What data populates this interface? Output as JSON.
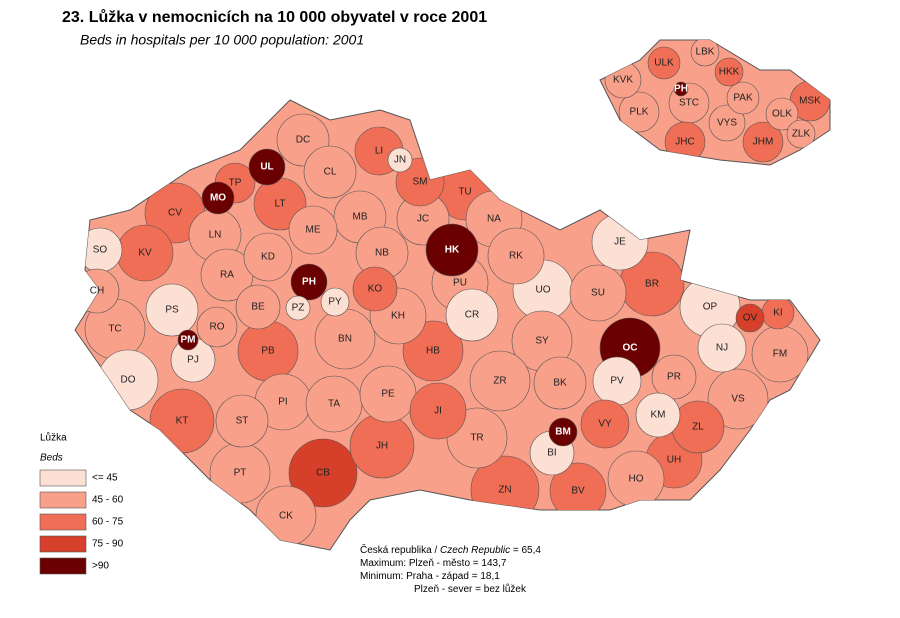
{
  "header": {
    "title": "23. Lůžka v nemocnicích na 10 000 obyvatel v roce 2001",
    "subtitle": "Beds in hospitals per 10 000 population: 2001"
  },
  "legend": {
    "title": "Lůžka",
    "subtitle": "Beds",
    "items": [
      {
        "label": "<= 45",
        "color": "#fde0d4"
      },
      {
        "label": "45 - 60",
        "color": "#f9a08a"
      },
      {
        "label": "60 - 75",
        "color": "#f06e55"
      },
      {
        "label": "75 - 90",
        "color": "#d6402a"
      },
      {
        "label": ">90",
        "color": "#6b0000"
      }
    ]
  },
  "districts": [
    {
      "code": "DC",
      "class": 1
    },
    {
      "code": "UL",
      "class": 4
    },
    {
      "code": "TP",
      "class": 2
    },
    {
      "code": "MO",
      "class": 4
    },
    {
      "code": "LI",
      "class": 2
    },
    {
      "code": "JN",
      "class": 0
    },
    {
      "code": "CL",
      "class": 1
    },
    {
      "code": "SM",
      "class": 2
    },
    {
      "code": "TU",
      "class": 2
    },
    {
      "code": "CV",
      "class": 2
    },
    {
      "code": "LT",
      "class": 2
    },
    {
      "code": "MB",
      "class": 1
    },
    {
      "code": "JC",
      "class": 1
    },
    {
      "code": "NA",
      "class": 1
    },
    {
      "code": "SO",
      "class": 0
    },
    {
      "code": "KV",
      "class": 2
    },
    {
      "code": "LN",
      "class": 1
    },
    {
      "code": "ME",
      "class": 1
    },
    {
      "code": "KD",
      "class": 1
    },
    {
      "code": "NB",
      "class": 1
    },
    {
      "code": "HK",
      "class": 4
    },
    {
      "code": "RK",
      "class": 1
    },
    {
      "code": "JE",
      "class": 0
    },
    {
      "code": "RA",
      "class": 1
    },
    {
      "code": "PH",
      "class": 4
    },
    {
      "code": "PY",
      "class": 0
    },
    {
      "code": "KO",
      "class": 2
    },
    {
      "code": "PU",
      "class": 1
    },
    {
      "code": "UO",
      "class": 0
    },
    {
      "code": "SU",
      "class": 1
    },
    {
      "code": "BR",
      "class": 2
    },
    {
      "code": "CH",
      "class": 1
    },
    {
      "code": "PS",
      "class": 0
    },
    {
      "code": "BE",
      "class": 1
    },
    {
      "code": "PZ",
      "class": 0
    },
    {
      "code": "KH",
      "class": 1
    },
    {
      "code": "CR",
      "class": 0
    },
    {
      "code": "OP",
      "class": 0
    },
    {
      "code": "OV",
      "class": 3
    },
    {
      "code": "KI",
      "class": 2
    },
    {
      "code": "TC",
      "class": 1
    },
    {
      "code": "RO",
      "class": 1
    },
    {
      "code": "PM",
      "class": 4
    },
    {
      "code": "BN",
      "class": 1
    },
    {
      "code": "SY",
      "class": 1
    },
    {
      "code": "OC",
      "class": 4
    },
    {
      "code": "NJ",
      "class": 0
    },
    {
      "code": "FM",
      "class": 1
    },
    {
      "code": "PB",
      "class": 2
    },
    {
      "code": "PJ",
      "class": 0
    },
    {
      "code": "HB",
      "class": 2
    },
    {
      "code": "DO",
      "class": 0
    },
    {
      "code": "ZR",
      "class": 1
    },
    {
      "code": "BK",
      "class": 1
    },
    {
      "code": "PV",
      "class": 0
    },
    {
      "code": "PR",
      "class": 1
    },
    {
      "code": "PI",
      "class": 1
    },
    {
      "code": "TA",
      "class": 1
    },
    {
      "code": "PE",
      "class": 1
    },
    {
      "code": "VS",
      "class": 1
    },
    {
      "code": "KT",
      "class": 2
    },
    {
      "code": "ST",
      "class": 1
    },
    {
      "code": "JI",
      "class": 2
    },
    {
      "code": "TR",
      "class": 1
    },
    {
      "code": "BM",
      "class": 4
    },
    {
      "code": "VY",
      "class": 2
    },
    {
      "code": "KM",
      "class": 0
    },
    {
      "code": "ZL",
      "class": 2
    },
    {
      "code": "JH",
      "class": 2
    },
    {
      "code": "BI",
      "class": 0
    },
    {
      "code": "UH",
      "class": 2
    },
    {
      "code": "CB",
      "class": 3
    },
    {
      "code": "PT",
      "class": 1
    },
    {
      "code": "HO",
      "class": 1
    },
    {
      "code": "ZN",
      "class": 2
    },
    {
      "code": "BV",
      "class": 2
    },
    {
      "code": "CK",
      "class": 1
    }
  ],
  "regions": [
    {
      "code": "ULK",
      "class": 2
    },
    {
      "code": "LBK",
      "class": 1
    },
    {
      "code": "HKK",
      "class": 2
    },
    {
      "code": "KVK",
      "class": 1
    },
    {
      "code": "PH",
      "class": 4
    },
    {
      "code": "STC",
      "class": 1
    },
    {
      "code": "PAK",
      "class": 1
    },
    {
      "code": "MSK",
      "class": 2
    },
    {
      "code": "PLK",
      "class": 1
    },
    {
      "code": "VYS",
      "class": 1
    },
    {
      "code": "OLK",
      "class": 1
    },
    {
      "code": "ZLK",
      "class": 1
    },
    {
      "code": "JHC",
      "class": 2
    },
    {
      "code": "JHM",
      "class": 2
    }
  ],
  "notes": [
    [
      "Česká republika / ",
      "Czech Republic",
      " = 65,4"
    ],
    [
      "Maximum: Plzeň - město  = 143,7"
    ],
    [
      "Minimum: Praha - západ = 18,1"
    ],
    [
      "Plzeň - sever = bez lůžek"
    ]
  ]
}
